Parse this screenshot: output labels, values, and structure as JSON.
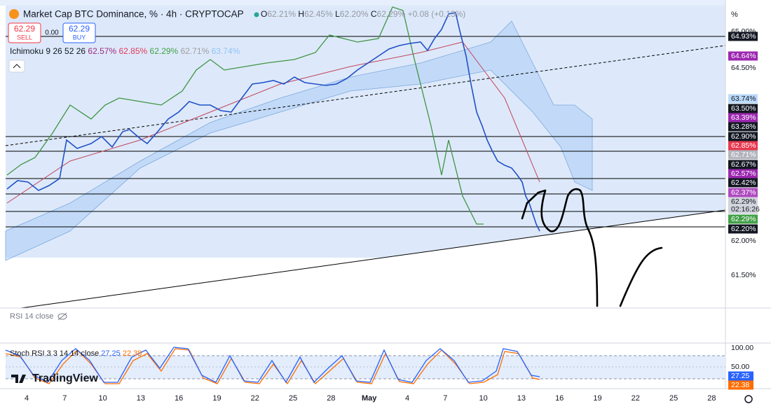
{
  "header": {
    "title": "Market Cap BTC Dominance, % · 4h · CRYPTOCAP",
    "ohlc": [
      {
        "label": "O",
        "value": "62.21%"
      },
      {
        "label": "H",
        "value": "62.45%"
      },
      {
        "label": "L",
        "value": "62.20%"
      },
      {
        "label": "C",
        "value": "62.29%"
      }
    ],
    "change": "+0.08 (+0.13%)"
  },
  "trade": {
    "sell_price": "62.29",
    "sell_label": "SELL",
    "spread": "0.00",
    "buy_price": "62.29",
    "buy_label": "BUY"
  },
  "ichimoku": {
    "name": "Ichimoku 9 26 52 26",
    "values": [
      {
        "text": "62.57%",
        "color": "#9c2a7f"
      },
      {
        "text": "62.85%",
        "color": "#e0395a"
      },
      {
        "text": "62.29%",
        "color": "#43a047"
      },
      {
        "text": "62.71%",
        "color": "#9e9e9e"
      },
      {
        "text": "63.74%",
        "color": "#90c4f5"
      }
    ]
  },
  "price_axis": {
    "unit": "%",
    "labels": [
      {
        "text": "65.00%"
      },
      {
        "text": "64.93%",
        "background": "#131722",
        "color": "#ffffff"
      },
      {
        "text": "64.64%",
        "background": "#9c27b0",
        "color": "#ffffff"
      },
      {
        "text": "64.50%"
      },
      {
        "text": "63.74%",
        "background": "#bbdafb",
        "color": "#131722"
      },
      {
        "text": "63.50%",
        "background": "#131722",
        "color": "#ffffff"
      },
      {
        "text": "63.39%",
        "background": "#9c27b0",
        "color": "#ffffff"
      },
      {
        "text": "63.28%",
        "background": "#131722",
        "color": "#ffffff"
      },
      {
        "text": "62.90%",
        "background": "#131722",
        "color": "#ffffff"
      },
      {
        "text": "62.85%",
        "background": "#e8384f",
        "color": "#ffffff"
      },
      {
        "text": "62.71%",
        "background": "#b2b5be",
        "color": "#ffffff"
      },
      {
        "text": "62.67%",
        "background": "#131722",
        "color": "#ffffff"
      },
      {
        "text": "62.57%",
        "background": "#9c27b0",
        "color": "#ffffff"
      },
      {
        "text": "62.42%",
        "background": "#131722",
        "color": "#ffffff"
      },
      {
        "text": "62.37%",
        "background": "#b04ac0",
        "color": "#ffffff"
      },
      {
        "text": "62.29%",
        "background": "#d1d4dc",
        "color": "#131722"
      },
      {
        "text": "02:16:26",
        "background": "#d1d4dc",
        "color": "#131722"
      },
      {
        "text": "62.29%",
        "background": "#43a047",
        "color": "#ffffff"
      },
      {
        "text": "62.20%",
        "background": "#131722",
        "color": "#ffffff"
      },
      {
        "text": "62.00%"
      },
      {
        "text": "61.50%"
      }
    ]
  },
  "rsi": {
    "name": "RSI 14 close"
  },
  "stoch": {
    "name": "Stoch RSI 3 3 14 14 close",
    "k": "27.25",
    "d": "22.38",
    "axis": [
      "100.00",
      "50.00"
    ],
    "k_color": "#2962ff",
    "d_color": "#ff6d00"
  },
  "time_axis": [
    "4",
    "7",
    "10",
    "13",
    "16",
    "19",
    "22",
    "25",
    "28",
    "May",
    "4",
    "7",
    "10",
    "13",
    "16",
    "19",
    "22",
    "25",
    "28"
  ],
  "branding": "TradingView"
}
